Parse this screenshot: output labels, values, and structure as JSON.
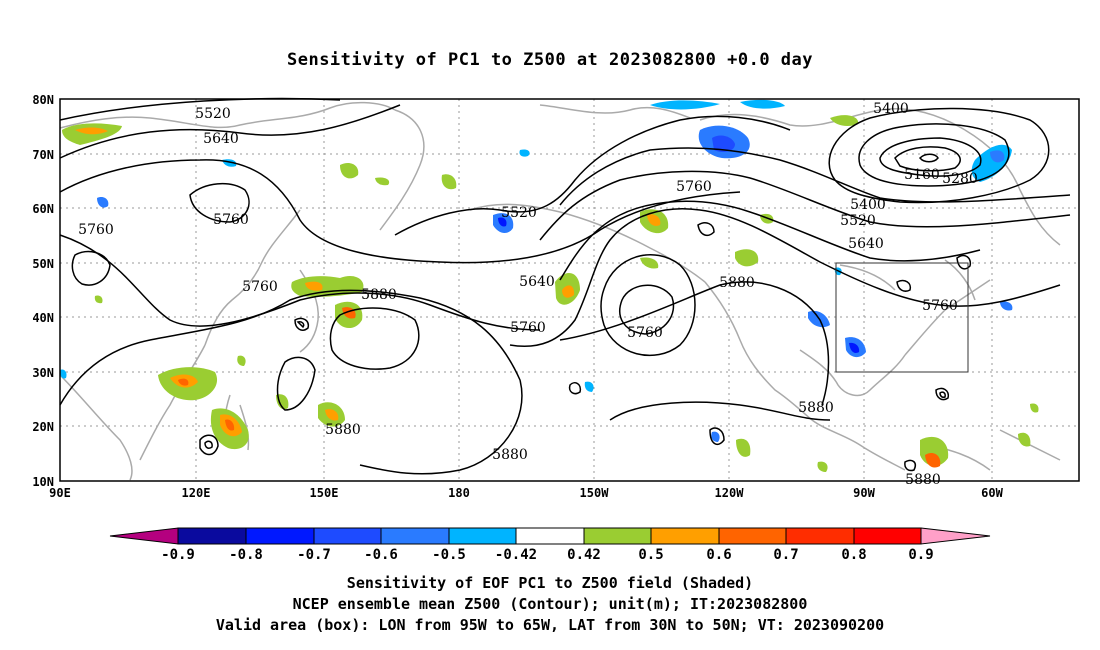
{
  "title": "Sensitivity of PC1 to Z500 at 2023082800 +0.0 day",
  "map": {
    "lat_labels": [
      "80N",
      "70N",
      "60N",
      "50N",
      "40N",
      "30N",
      "20N",
      "10N"
    ],
    "lon_labels": [
      "90E",
      "120E",
      "150E",
      "180",
      "150W",
      "120W",
      "90W",
      "60W"
    ],
    "contour_labels": [
      "5520",
      "5640",
      "5760",
      "5760",
      "5760",
      "5880",
      "5880",
      "5880",
      "5520",
      "5640",
      "5760",
      "5760",
      "5760",
      "5880",
      "5880",
      "5400",
      "5160",
      "5280",
      "5400",
      "5520",
      "5640",
      "5760",
      "5880",
      "5880"
    ],
    "box": {
      "lon_from": "95W",
      "lon_to": "65W",
      "lat_from": "30N",
      "lat_to": "50N"
    }
  },
  "colorbar": {
    "labels": [
      "-0.9",
      "-0.8",
      "-0.7",
      "-0.6",
      "-0.5",
      "-0.42",
      "0.42",
      "0.5",
      "0.6",
      "0.7",
      "0.8",
      "0.9"
    ],
    "colors": [
      "#b4007f",
      "#0a0a9e",
      "#0018ff",
      "#1e4bff",
      "#2a7bff",
      "#00b4ff",
      "#ffffff",
      "#9acd32",
      "#ff9f00",
      "#ff6400",
      "#ff2d00",
      "#ff0000",
      "#ffa0c8"
    ]
  },
  "footer": {
    "line1": "Sensitivity of EOF PC1 to Z500 field (Shaded)",
    "line2": "NCEP ensemble mean Z500 (Contour); unit(m); IT:2023082800",
    "line3": "Valid area (box): LON from 95W to 65W, LAT from 30N to 50N; VT: 2023090200"
  }
}
